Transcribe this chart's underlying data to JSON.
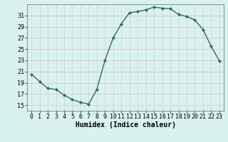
{
  "x": [
    0,
    1,
    2,
    3,
    4,
    5,
    6,
    7,
    8,
    9,
    10,
    11,
    12,
    13,
    14,
    15,
    16,
    17,
    18,
    19,
    20,
    21,
    22,
    23
  ],
  "y": [
    20.5,
    19.2,
    18.0,
    17.8,
    16.8,
    16.0,
    15.5,
    15.2,
    17.8,
    23.0,
    27.0,
    29.5,
    31.5,
    31.7,
    32.0,
    32.5,
    32.3,
    32.2,
    31.2,
    30.8,
    30.2,
    28.5,
    25.5,
    22.9
  ],
  "line_color": "#2d6b5e",
  "marker": "D",
  "marker_size": 2.0,
  "bg_color": "#d9f2f0",
  "grid_color": "#b8dbd8",
  "grid_color_red": "#e8b8b8",
  "xlabel": "Humidex (Indice chaleur)",
  "xlim": [
    -0.5,
    23.5
  ],
  "ylim": [
    14,
    33
  ],
  "yticks": [
    15,
    17,
    19,
    21,
    23,
    25,
    27,
    29,
    31
  ],
  "xticks": [
    0,
    1,
    2,
    3,
    4,
    5,
    6,
    7,
    8,
    9,
    10,
    11,
    12,
    13,
    14,
    15,
    16,
    17,
    18,
    19,
    20,
    21,
    22,
    23
  ],
  "xlabel_fontsize": 7,
  "tick_fontsize": 6,
  "line_width": 1.0
}
